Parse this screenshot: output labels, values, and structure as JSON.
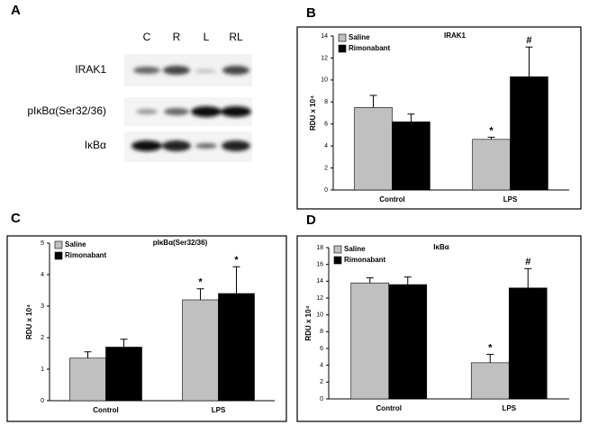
{
  "blot": {
    "panel_label": "A",
    "lanes": [
      "C",
      "R",
      "L",
      "RL"
    ],
    "rows": [
      "IRAK1",
      "pIκBα(Ser32/36)",
      "IκBα"
    ]
  },
  "chart_data": [
    {
      "type": "bar",
      "panel_label": "B",
      "annotation": "IRAK1",
      "y_label": "RDU x 10⁴",
      "categories": [
        "Control",
        "LPS"
      ],
      "series": [
        {
          "name": "Saline",
          "color": "#c0c0c0",
          "values": [
            7.5,
            4.6
          ],
          "errors": [
            1.1,
            0.2
          ],
          "significance": [
            null,
            "*"
          ]
        },
        {
          "name": "Rimonabant",
          "color": "#000000",
          "values": [
            6.2,
            10.3
          ],
          "errors": [
            0.7,
            2.7
          ],
          "significance": [
            null,
            "#"
          ]
        }
      ],
      "ylim": [
        0,
        14
      ],
      "yticks": [
        0,
        2,
        4,
        6,
        8,
        10,
        12,
        14
      ]
    },
    {
      "type": "bar",
      "panel_label": "C",
      "annotation": "pIκBα(Ser32/36)",
      "y_label": "RDU x 10⁴",
      "categories": [
        "Control",
        "LPS"
      ],
      "series": [
        {
          "name": "Saline",
          "color": "#c0c0c0",
          "values": [
            1.35,
            3.2
          ],
          "errors": [
            0.2,
            0.35
          ],
          "significance": [
            null,
            "*"
          ]
        },
        {
          "name": "Rimonabant",
          "color": "#000000",
          "values": [
            1.7,
            3.4
          ],
          "errors": [
            0.25,
            0.85
          ],
          "significance": [
            null,
            "*"
          ]
        }
      ],
      "ylim": [
        0,
        5
      ],
      "yticks": [
        0,
        1,
        2,
        3,
        4,
        5
      ]
    },
    {
      "type": "bar",
      "panel_label": "D",
      "annotation": "IκBα",
      "y_label": "RDU x 10⁴",
      "categories": [
        "Control",
        "LPS"
      ],
      "series": [
        {
          "name": "Saline",
          "color": "#c0c0c0",
          "values": [
            13.8,
            4.3
          ],
          "errors": [
            0.6,
            1.0
          ],
          "significance": [
            null,
            "*"
          ]
        },
        {
          "name": "Rimonabant",
          "color": "#000000",
          "values": [
            13.6,
            13.2
          ],
          "errors": [
            0.9,
            2.3
          ],
          "significance": [
            null,
            "#"
          ]
        }
      ],
      "ylim": [
        0,
        18
      ],
      "yticks": [
        0,
        2,
        4,
        6,
        8,
        10,
        12,
        14,
        16,
        18
      ]
    }
  ]
}
